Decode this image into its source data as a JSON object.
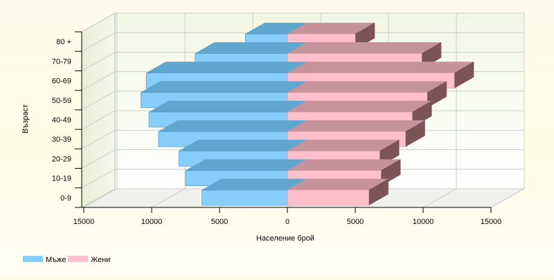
{
  "chart_data": {
    "type": "bar",
    "orientation": "horizontal",
    "style": "3d-population-pyramid",
    "categories": [
      "0-9",
      "10-19",
      "20-29",
      "30-39",
      "40-49",
      "50-59",
      "60-69",
      "70-79",
      "80 +"
    ],
    "series": [
      {
        "name": "Мъже",
        "color": "#87cefa",
        "side": "left",
        "values": [
          6300,
          7500,
          8000,
          9500,
          10200,
          10800,
          10400,
          6800,
          3100
        ]
      },
      {
        "name": "Жени",
        "color": "#ffc0cb",
        "side": "right",
        "values": [
          6000,
          6900,
          6800,
          8700,
          9200,
          10300,
          12300,
          9900,
          5000
        ]
      }
    ],
    "xlabel": "Население брой",
    "ylabel": "Възраст",
    "xlim": [
      -15000,
      15000
    ],
    "xticks": [
      -15000,
      -10000,
      -5000,
      0,
      5000,
      10000,
      15000
    ],
    "xtick_labels": [
      "15000",
      "10000",
      "5000",
      "0",
      "5000",
      "10000",
      "15000"
    ],
    "grid": true,
    "legend_position": "bottom-left"
  }
}
